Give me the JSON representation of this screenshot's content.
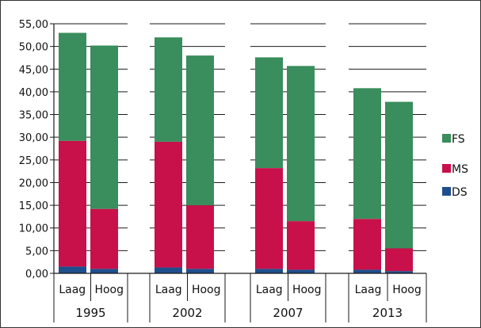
{
  "chart_data": {
    "type": "bar",
    "stacked": true,
    "title": "",
    "xlabel": "",
    "ylabel": "",
    "ylim": [
      0,
      55
    ],
    "y_ticks": [
      "0,00",
      "5,00",
      "10,00",
      "15,00",
      "20,00",
      "25,00",
      "30,00",
      "35,00",
      "40,00",
      "45,00",
      "50,00",
      "55,00"
    ],
    "grid": true,
    "groups": [
      "1995",
      "2002",
      "2007",
      "2013"
    ],
    "categories": [
      "Laag",
      "Hoog",
      "Laag",
      "Hoog",
      "Laag",
      "Hoog",
      "Laag",
      "Hoog"
    ],
    "series": [
      {
        "name": "DS",
        "color": "#1f4e8c",
        "values": [
          1.5,
          1.0,
          1.3,
          1.0,
          1.0,
          0.8,
          0.8,
          0.5
        ]
      },
      {
        "name": "MS",
        "color": "#c8104a",
        "values": [
          27.7,
          13.2,
          27.7,
          14.0,
          22.2,
          10.7,
          11.2,
          5.0
        ]
      },
      {
        "name": "FS",
        "color": "#3a8d5c",
        "values": [
          23.8,
          36.0,
          23.0,
          33.0,
          24.4,
          34.2,
          28.8,
          32.3
        ]
      }
    ],
    "legend_position": "right",
    "legend_order": [
      "FS",
      "MS",
      "DS"
    ]
  }
}
